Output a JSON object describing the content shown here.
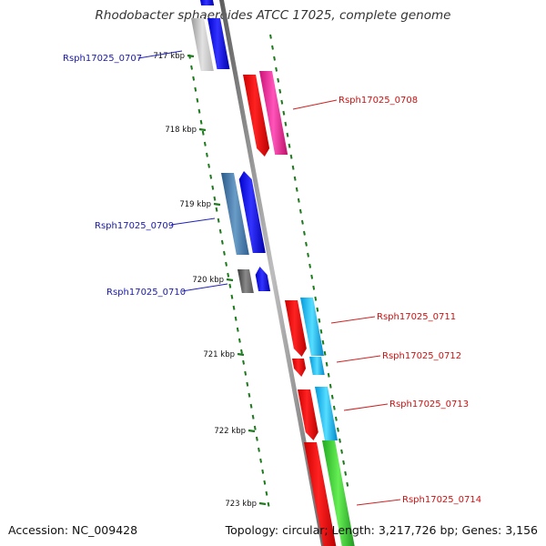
{
  "title": "Rhodobacter sphaeroides ATCC 17025, complete genome",
  "footer": {
    "accession": "Accession: NC_009428",
    "summary": "Topology: circular; Length: 3,217,726 bp; Genes: 3,156"
  },
  "axis": {
    "ticks": [
      "717 kbp",
      "718 kbp",
      "719 kbp",
      "720 kbp",
      "721 kbp",
      "722 kbp",
      "723 kbp"
    ]
  },
  "genes": [
    {
      "label": "Rsph17025_0707",
      "strand": "-",
      "color": "#1a1aa8"
    },
    {
      "label": "Rsph17025_0708",
      "strand": "+",
      "color": "#cc1111"
    },
    {
      "label": "Rsph17025_0709",
      "strand": "-",
      "color": "#1a1aa8"
    },
    {
      "label": "Rsph17025_0710",
      "strand": "-",
      "color": "#1a1aa8"
    },
    {
      "label": "Rsph17025_0711",
      "strand": "+",
      "color": "#cc1111"
    },
    {
      "label": "Rsph17025_0712",
      "strand": "+",
      "color": "#cc1111"
    },
    {
      "label": "Rsph17025_0713",
      "strand": "+",
      "color": "#cc1111"
    },
    {
      "label": "Rsph17025_0714",
      "strand": "+",
      "color": "#cc1111"
    }
  ]
}
